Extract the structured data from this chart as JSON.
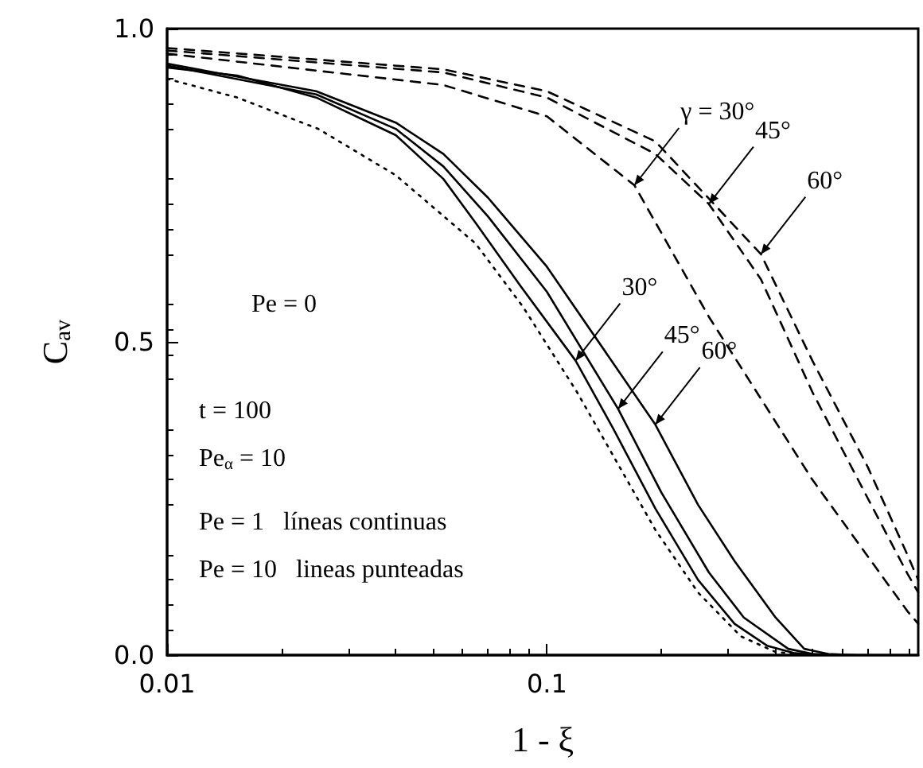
{
  "chart_data": {
    "type": "line",
    "xlabel": "1 - ξ",
    "ylabel": "C$_{av}$",
    "log": "x",
    "xlim": [
      0.01,
      0.95
    ],
    "xticks": [
      0.01,
      0.1
    ],
    "ylim": [
      0,
      1
    ],
    "yticks": [
      {
        "value": 0,
        "label": "0.0"
      },
      {
        "value": 0.5,
        "label": "0.5"
      },
      {
        "value": 1,
        "label": "1.0"
      }
    ],
    "grid": false,
    "marker": "none",
    "series": [
      {
        "color": "#000000",
        "line_style": "solid",
        "x": [
          0.01,
          0.0153,
          0.0247,
          0.04,
          0.0534,
          0.0649,
          0.085,
          0.119,
          0.15,
          0.193,
          0.25,
          0.312,
          0.38,
          0.45,
          0.55
        ],
        "values": [
          0.938,
          0.925,
          0.89,
          0.83,
          0.76,
          0.69,
          0.59,
          0.47,
          0.36,
          0.234,
          0.12,
          0.05,
          0.015,
          0.003,
          0
        ]
      },
      {
        "color": "#000000",
        "line_style": "solid",
        "x": [
          0.01,
          0.0247,
          0.04,
          0.0534,
          0.07,
          0.1,
          0.154,
          0.2,
          0.267,
          0.33,
          0.432,
          0.5,
          0.6
        ],
        "values": [
          0.941,
          0.895,
          0.84,
          0.78,
          0.7,
          0.58,
          0.393,
          0.26,
          0.132,
          0.06,
          0.01,
          0.002,
          0
        ]
      },
      {
        "color": "#000000",
        "line_style": "solid",
        "x": [
          0.01,
          0.0247,
          0.04,
          0.0534,
          0.07,
          0.1,
          0.193,
          0.25,
          0.312,
          0.4,
          0.476,
          0.55,
          0.65
        ],
        "values": [
          0.944,
          0.9,
          0.85,
          0.8,
          0.73,
          0.62,
          0.368,
          0.24,
          0.15,
          0.06,
          0.01,
          0.002,
          0
        ]
      },
      {
        "color": "#000000",
        "line_style": "dotted",
        "x": [
          0.01,
          0.0153,
          0.025,
          0.04,
          0.0649,
          0.0865,
          0.12,
          0.193,
          0.25,
          0.324,
          0.4,
          0.5
        ],
        "values": [
          0.92,
          0.89,
          0.84,
          0.766,
          0.657,
          0.556,
          0.42,
          0.2,
          0.1,
          0.03,
          0.005,
          0
        ]
      },
      {
        "color": "#000000",
        "line_style": "dashed",
        "x": [
          0.01,
          0.0534,
          0.1,
          0.17,
          0.267,
          0.5,
          0.89,
          0.95
        ],
        "values": [
          0.96,
          0.91,
          0.86,
          0.75,
          0.54,
          0.28,
          0.07,
          0.05
        ]
      },
      {
        "color": "#000000",
        "line_style": "dashed",
        "x": [
          0.01,
          0.0534,
          0.1,
          0.193,
          0.267,
          0.366,
          0.5,
          0.7,
          0.89,
          0.95
        ],
        "values": [
          0.965,
          0.93,
          0.89,
          0.8,
          0.72,
          0.6,
          0.42,
          0.25,
          0.13,
          0.1
        ]
      },
      {
        "color": "#000000",
        "line_style": "dashed",
        "x": [
          0.01,
          0.0534,
          0.1,
          0.193,
          0.366,
          0.5,
          0.7,
          0.89,
          0.95
        ],
        "values": [
          0.969,
          0.935,
          0.9,
          0.82,
          0.64,
          0.47,
          0.3,
          0.16,
          0.12
        ]
      }
    ],
    "annotations": [
      "Pe = 0",
      "t = 100",
      "Pe$_{α}$ = 10",
      "Pe = 1   líneas continuas",
      "Pe = 10   lineas punteadas",
      {
        "text": "30°",
        "x": 0.119,
        "y": 0.47
      },
      {
        "text": "45°",
        "x": 0.154,
        "y": 0.393
      },
      {
        "text": "60°",
        "x": 0.193,
        "y": 0.368
      },
      {
        "text": "γ = 30°",
        "x": 0.17,
        "y": 0.75
      },
      {
        "text": "45°",
        "x": 0.267,
        "y": 0.72
      },
      {
        "text": "60°",
        "x": 0.366,
        "y": 0.64
      }
    ]
  }
}
